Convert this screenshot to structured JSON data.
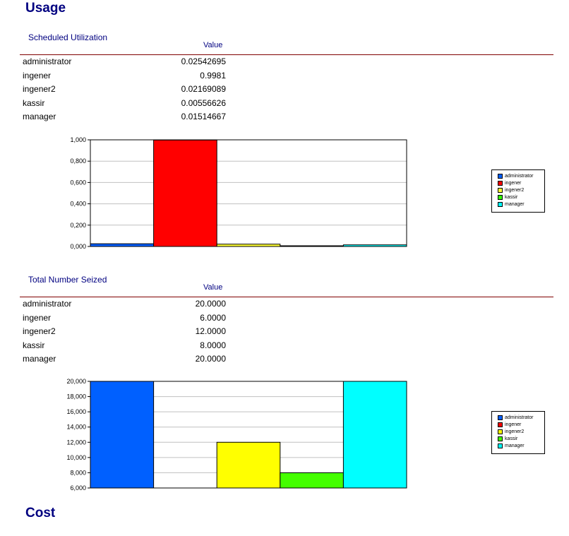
{
  "headings": {
    "usage": "Usage",
    "cost": "Cost"
  },
  "sections": [
    {
      "title": "Scheduled Utilization",
      "column_header": "Value",
      "rows": [
        {
          "name": "administrator",
          "value": "0.02542695"
        },
        {
          "name": "ingener",
          "value": "0.9981"
        },
        {
          "name": "ingener2",
          "value": "0.02169089"
        },
        {
          "name": "kassir",
          "value": "0.00556626"
        },
        {
          "name": "manager",
          "value": "0.01514667"
        }
      ]
    },
    {
      "title": "Total Number Seized",
      "column_header": "Value",
      "rows": [
        {
          "name": "administrator",
          "value": "20.0000"
        },
        {
          "name": "ingener",
          "value": "6.0000"
        },
        {
          "name": "ingener2",
          "value": "12.0000"
        },
        {
          "name": "kassir",
          "value": "8.0000"
        },
        {
          "name": "manager",
          "value": "20.0000"
        }
      ]
    }
  ],
  "chart_data": [
    {
      "type": "bar",
      "title": "",
      "categories": [
        "administrator",
        "ingener",
        "ingener2",
        "kassir",
        "manager"
      ],
      "values": [
        0.02542695,
        0.9981,
        0.02169089,
        0.00556626,
        0.01514667
      ],
      "colors": [
        "#0060ff",
        "#ff0000",
        "#ffff33",
        "#33ff00",
        "#00ffff"
      ],
      "ylim": [
        0,
        1
      ],
      "yticks": [
        "0,000",
        "0,200",
        "0,400",
        "0,600",
        "0,800",
        "1,000"
      ],
      "ytick_values": [
        0,
        0.2,
        0.4,
        0.6,
        0.8,
        1.0
      ],
      "grid": true,
      "legend": "right",
      "legend_entries": [
        "administrator",
        "ingener",
        "ingener2",
        "kassir",
        "manager"
      ]
    },
    {
      "type": "bar",
      "title": "",
      "categories": [
        "administrator",
        "ingener",
        "ingener2",
        "kassir",
        "manager"
      ],
      "values": [
        20,
        6,
        12,
        8,
        20
      ],
      "colors": [
        "#0060ff",
        "#ff0000",
        "#ffff00",
        "#44ff00",
        "#00ffff"
      ],
      "ylim": [
        6,
        20
      ],
      "yticks": [
        "6,000",
        "8,000",
        "10,000",
        "12,000",
        "14,000",
        "16,000",
        "18,000",
        "20,000"
      ],
      "ytick_values": [
        6,
        8,
        10,
        12,
        14,
        16,
        18,
        20
      ],
      "grid": true,
      "legend": "right",
      "legend_entries": [
        "administrator",
        "ingener",
        "ingener2",
        "kassir",
        "manager"
      ]
    }
  ]
}
